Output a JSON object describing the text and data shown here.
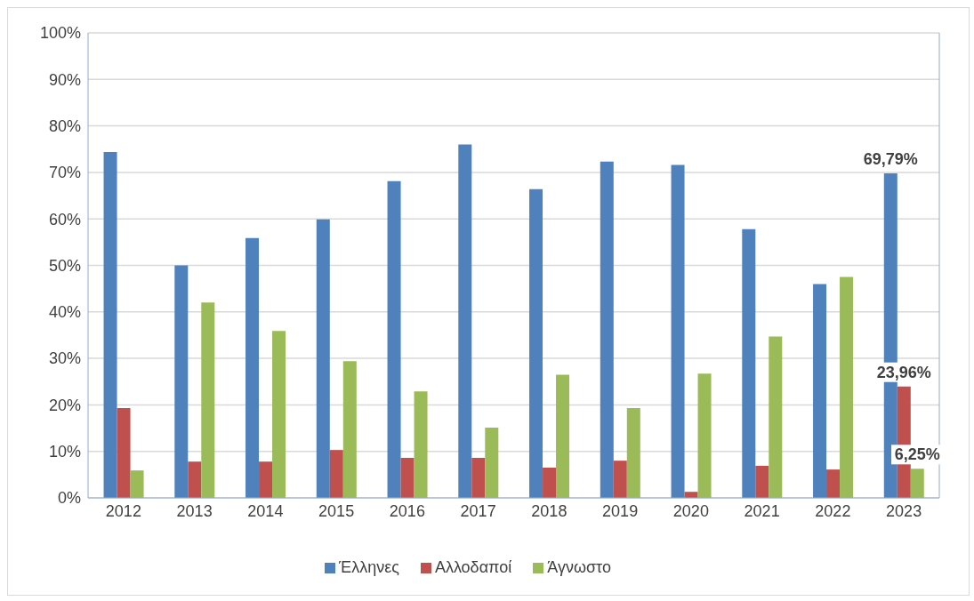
{
  "chart_data": {
    "type": "bar",
    "categories": [
      "2012",
      "2013",
      "2014",
      "2015",
      "2016",
      "2017",
      "2018",
      "2019",
      "2020",
      "2021",
      "2022",
      "2023"
    ],
    "series": [
      {
        "name": "Έλληνες",
        "color": "#4f81bd",
        "values": [
          74.4,
          50,
          55.9,
          59.9,
          68.1,
          76,
          66.4,
          72.3,
          71.6,
          57.8,
          46,
          69.79
        ],
        "value_labels": [
          null,
          null,
          null,
          null,
          null,
          null,
          null,
          null,
          null,
          null,
          null,
          "69,79%"
        ]
      },
      {
        "name": "Αλλοδαποί",
        "color": "#c0504d",
        "values": [
          19.3,
          7.8,
          7.8,
          10.3,
          8.6,
          8.6,
          6.5,
          8.0,
          1.3,
          6.9,
          6.1,
          23.96
        ],
        "value_labels": [
          null,
          null,
          null,
          null,
          null,
          null,
          null,
          null,
          null,
          null,
          null,
          "23,96%"
        ]
      },
      {
        "name": "Άγνωστο",
        "color": "#9bbb59",
        "values": [
          5.9,
          42,
          35.9,
          29.4,
          22.9,
          15.1,
          26.5,
          19.3,
          26.7,
          34.7,
          47.5,
          6.25
        ],
        "value_labels": [
          null,
          null,
          null,
          null,
          null,
          null,
          null,
          null,
          null,
          null,
          null,
          "6,25%"
        ]
      }
    ],
    "ylim": [
      0,
      100
    ],
    "yticks": [
      {
        "value": 0,
        "label": "0%"
      },
      {
        "value": 10,
        "label": "10%"
      },
      {
        "value": 20,
        "label": "20%"
      },
      {
        "value": 30,
        "label": "30%"
      },
      {
        "value": 40,
        "label": "40%"
      },
      {
        "value": 50,
        "label": "50%"
      },
      {
        "value": 60,
        "label": "60%"
      },
      {
        "value": 70,
        "label": "70%"
      },
      {
        "value": 80,
        "label": "80%"
      },
      {
        "value": 90,
        "label": "90%"
      },
      {
        "value": 100,
        "label": "100%"
      }
    ],
    "grid": "y",
    "legend": "bottom"
  }
}
